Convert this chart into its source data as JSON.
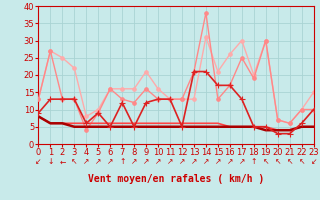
{
  "xlabel": "Vent moyen/en rafales ( km/h )",
  "background_color": "#c8eaea",
  "grid_color": "#aad4d4",
  "ylim": [
    0,
    40
  ],
  "xlim": [
    0,
    23
  ],
  "yticks": [
    0,
    5,
    10,
    15,
    20,
    25,
    30,
    35,
    40
  ],
  "xticks": [
    0,
    1,
    2,
    3,
    4,
    5,
    6,
    7,
    8,
    9,
    10,
    11,
    12,
    13,
    14,
    15,
    16,
    17,
    18,
    19,
    20,
    21,
    22,
    23
  ],
  "lines": [
    {
      "y": [
        13,
        27,
        25,
        22,
        8,
        10,
        16,
        16,
        16,
        21,
        16,
        13,
        13,
        13,
        31,
        21,
        26,
        30,
        20,
        30,
        7,
        6,
        10,
        15
      ],
      "color": "#ffaaaa",
      "lw": 1.0,
      "marker": "o",
      "ms": 2.5,
      "zorder": 2
    },
    {
      "y": [
        13,
        27,
        13,
        13,
        4,
        9,
        16,
        13,
        12,
        16,
        13,
        13,
        13,
        21,
        38,
        13,
        17,
        25,
        19,
        30,
        7,
        6,
        10,
        10
      ],
      "color": "#ff8888",
      "lw": 1.0,
      "marker": "o",
      "ms": 2.5,
      "zorder": 3
    },
    {
      "y": [
        9,
        13,
        13,
        13,
        6,
        9,
        5,
        12,
        5,
        12,
        13,
        13,
        5,
        21,
        21,
        17,
        17,
        13,
        5,
        5,
        3,
        3,
        6,
        10
      ],
      "color": "#dd2222",
      "lw": 1.2,
      "marker": "+",
      "ms": 4,
      "zorder": 5
    },
    {
      "y": [
        8,
        6,
        6,
        6,
        6,
        6,
        6,
        6,
        6,
        6,
        6,
        6,
        6,
        6,
        6,
        6,
        5,
        5,
        5,
        5,
        4,
        4,
        5,
        5
      ],
      "color": "#ff4444",
      "lw": 1.2,
      "marker": null,
      "ms": 0,
      "zorder": 3
    },
    {
      "y": [
        8,
        6,
        6,
        5,
        5,
        5,
        5,
        5,
        5,
        5,
        5,
        5,
        5,
        5,
        5,
        5,
        5,
        5,
        5,
        4,
        4,
        4,
        5,
        5
      ],
      "color": "#aa0000",
      "lw": 1.8,
      "marker": null,
      "ms": 0,
      "zorder": 4
    }
  ],
  "wind_arrows": [
    "↙",
    "↓",
    "←",
    "↖",
    "↗",
    "↗",
    "↗",
    "↑",
    "↗",
    "↗",
    "↗",
    "↗",
    "↗",
    "↗",
    "↗",
    "↗",
    "↗",
    "↗",
    "↑",
    "↖",
    "↖",
    "↖",
    "↖",
    "↙"
  ],
  "xlabel_color": "#cc0000",
  "xlabel_fontsize": 7,
  "tick_fontsize": 6,
  "tick_color": "#cc0000",
  "axis_color": "#cc0000"
}
